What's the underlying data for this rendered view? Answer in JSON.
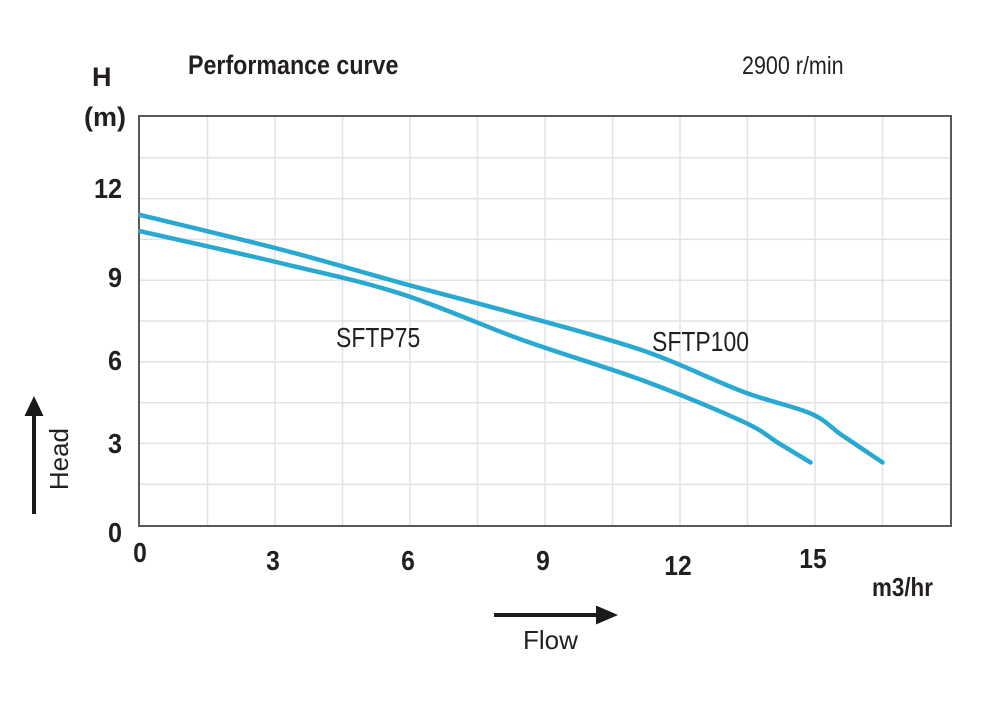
{
  "header": {
    "title": "Performance curve",
    "rpm": "2900 r/min"
  },
  "axes": {
    "y": {
      "symbol": "H",
      "unit": "(m)",
      "arrow_label": "Head",
      "tick_labels": [
        "0",
        "3",
        "6",
        "9",
        "12"
      ]
    },
    "x": {
      "unit": "m3/hr",
      "arrow_label": "Flow",
      "tick_labels": [
        "0",
        "3",
        "6",
        "9",
        "12",
        "15"
      ]
    }
  },
  "chart_data": {
    "type": "line",
    "title": "Performance curve",
    "annotation": "2900 r/min",
    "xlabel": "Flow (m3/hr)",
    "ylabel": "Head H (m)",
    "xlim": [
      0,
      18
    ],
    "ylim": [
      0,
      15
    ],
    "grid": true,
    "grid_step": 1.5,
    "x_tick_values": [
      0,
      3,
      6,
      9,
      12,
      15
    ],
    "y_tick_values": [
      0,
      3,
      6,
      9,
      12
    ],
    "legend_position": "inline-labels",
    "series": [
      {
        "name": "SFTP75",
        "points": [
          [
            0,
            10.8
          ],
          [
            3.2,
            9.6
          ],
          [
            5.8,
            8.5
          ],
          [
            8.5,
            6.8
          ],
          [
            11.2,
            5.3
          ],
          [
            13.4,
            3.8
          ],
          [
            14.2,
            3.0
          ],
          [
            14.9,
            2.3
          ]
        ]
      },
      {
        "name": "SFTP100",
        "points": [
          [
            0,
            11.4
          ],
          [
            3.2,
            10.1
          ],
          [
            5.8,
            8.9
          ],
          [
            8.5,
            7.7
          ],
          [
            11.2,
            6.4
          ],
          [
            13.4,
            4.9
          ],
          [
            14.9,
            4.1
          ],
          [
            15.6,
            3.3
          ],
          [
            16.5,
            2.3
          ]
        ]
      }
    ]
  },
  "colors": {
    "curve": "#29a8d1",
    "grid": "#e2e2e2",
    "border": "#58595b",
    "text": "#231f20",
    "arrow": "#1a1a1a"
  }
}
